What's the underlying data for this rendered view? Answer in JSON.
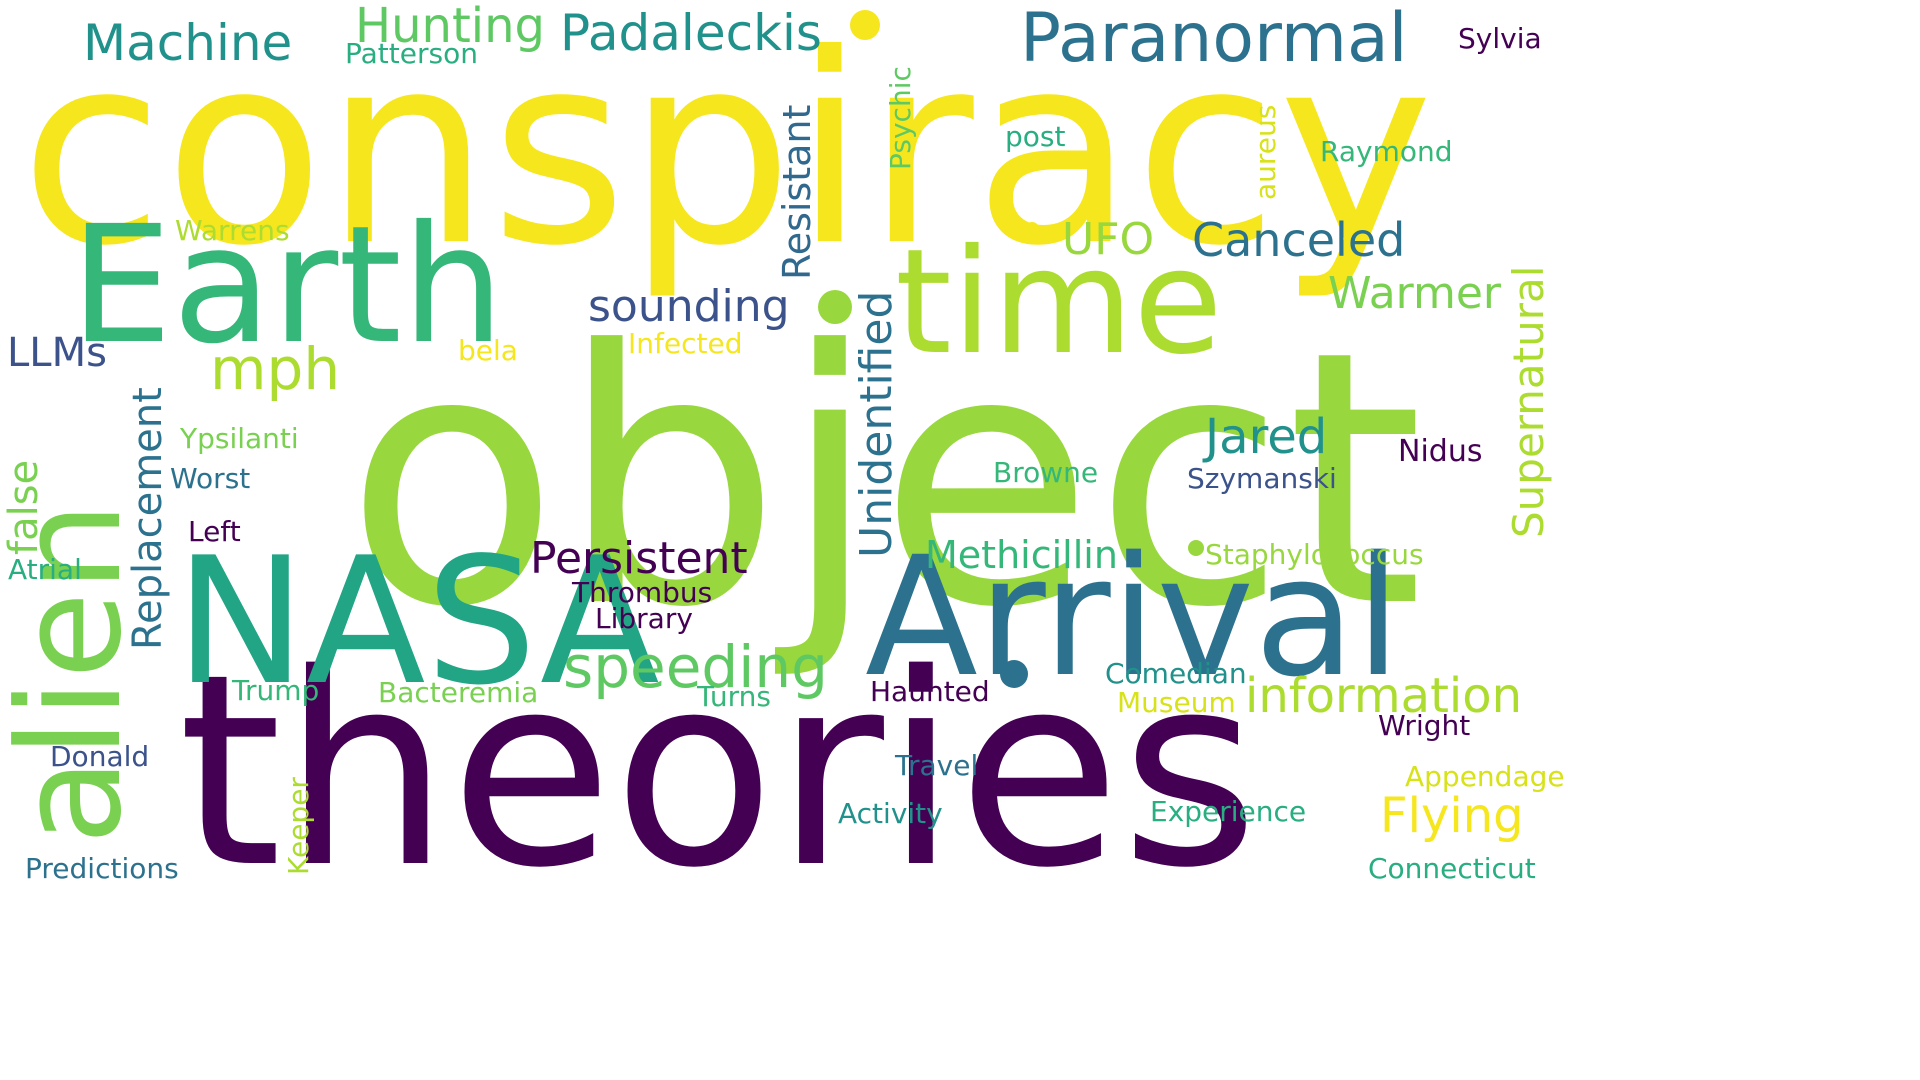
{
  "colors": {
    "background": "#ffffff",
    "dark_purple": "#440154",
    "indigo": "#3b528b",
    "blue_teal": "#2c728e",
    "teal": "#21918c",
    "sea_green": "#28ae80",
    "green": "#5ec962",
    "lime": "#98d83e",
    "yellow_green": "#addc30",
    "yellow": "#f5e61e"
  },
  "words": [
    {
      "text": "conspiracy",
      "color": "#f5e61e"
    },
    {
      "text": "object",
      "color": "#98d83e"
    },
    {
      "text": "theories",
      "color": "#440154"
    },
    {
      "text": "NASA",
      "color": "#21a585"
    },
    {
      "text": "Arrival",
      "color": "#2c728e"
    },
    {
      "text": "Earth",
      "color": "#35b779"
    },
    {
      "text": "time",
      "color": "#addc30"
    },
    {
      "text": "alien",
      "color": "#7ad151"
    },
    {
      "text": "Paranormal",
      "color": "#2c728e"
    },
    {
      "text": "Padaleckis",
      "color": "#21918c"
    },
    {
      "text": "Hunting",
      "color": "#5ec962"
    },
    {
      "text": "Machine",
      "color": "#21918c"
    },
    {
      "text": "Patterson",
      "color": "#28ae80"
    },
    {
      "text": "Sylvia",
      "color": "#440154"
    },
    {
      "text": "Psychic",
      "color": "#5ec962"
    },
    {
      "text": "Resistant",
      "color": "#31688e"
    },
    {
      "text": "post",
      "color": "#28ae80"
    },
    {
      "text": "aureus",
      "color": "#d8e219"
    },
    {
      "text": "Raymond",
      "color": "#35b779"
    },
    {
      "text": "Supernatural",
      "color": "#addc30"
    },
    {
      "text": "Warrens",
      "color": "#addc30"
    },
    {
      "text": "UFO",
      "color": "#98d83e"
    },
    {
      "text": "Canceled",
      "color": "#2c728e"
    },
    {
      "text": "Warmer",
      "color": "#7ad151"
    },
    {
      "text": "sounding",
      "color": "#3b528b"
    },
    {
      "text": "Unidentified",
      "color": "#2c728e"
    },
    {
      "text": "LLMs",
      "color": "#3b528b"
    },
    {
      "text": "mph",
      "color": "#addc30"
    },
    {
      "text": "bela",
      "color": "#f5e61e"
    },
    {
      "text": "Infected",
      "color": "#f5e61e"
    },
    {
      "text": "Replacement",
      "color": "#2c728e"
    },
    {
      "text": "false",
      "color": "#7ad151"
    },
    {
      "text": "Ypsilanti",
      "color": "#7ad151"
    },
    {
      "text": "Jared",
      "color": "#21918c"
    },
    {
      "text": "Nidus",
      "color": "#440154"
    },
    {
      "text": "Browne",
      "color": "#35b779"
    },
    {
      "text": "Szymanski",
      "color": "#3b528b"
    },
    {
      "text": "Worst",
      "color": "#2c728e"
    },
    {
      "text": "Left",
      "color": "#440154"
    },
    {
      "text": "Persistent",
      "color": "#440154"
    },
    {
      "text": "Methicillin",
      "color": "#35b779"
    },
    {
      "text": "Staphylococcus",
      "color": "#98d83e"
    },
    {
      "text": "Atrial",
      "color": "#28ae80"
    },
    {
      "text": "Thrombus",
      "color": "#440154"
    },
    {
      "text": "Library",
      "color": "#440154"
    },
    {
      "text": "speeding",
      "color": "#5ec962"
    },
    {
      "text": "Comedian",
      "color": "#21918c"
    },
    {
      "text": "information",
      "color": "#addc30"
    },
    {
      "text": "Trump",
      "color": "#35b779"
    },
    {
      "text": "Bacteremia",
      "color": "#7ad151"
    },
    {
      "text": "Turns",
      "color": "#35b779"
    },
    {
      "text": "Haunted",
      "color": "#440154"
    },
    {
      "text": "Museum",
      "color": "#d8e219"
    },
    {
      "text": "Wright",
      "color": "#440154"
    },
    {
      "text": "Donald",
      "color": "#3b528b"
    },
    {
      "text": "Travel",
      "color": "#2c728e"
    },
    {
      "text": "Appendage",
      "color": "#d8e219"
    },
    {
      "text": "Keeper",
      "color": "#addc30"
    },
    {
      "text": "Activity",
      "color": "#21918c"
    },
    {
      "text": "Experience",
      "color": "#28ae80"
    },
    {
      "text": "Flying",
      "color": "#f5e61e"
    },
    {
      "text": "Predictions",
      "color": "#2c728e"
    },
    {
      "text": "Connecticut",
      "color": "#28ae80"
    }
  ],
  "dots": [
    {
      "color": "#f5e61e"
    },
    {
      "color": "#98d83e"
    },
    {
      "color": "#f5e61e"
    },
    {
      "color": "#98d83e"
    },
    {
      "color": "#2c728e"
    },
    {
      "color": "#440154"
    }
  ]
}
